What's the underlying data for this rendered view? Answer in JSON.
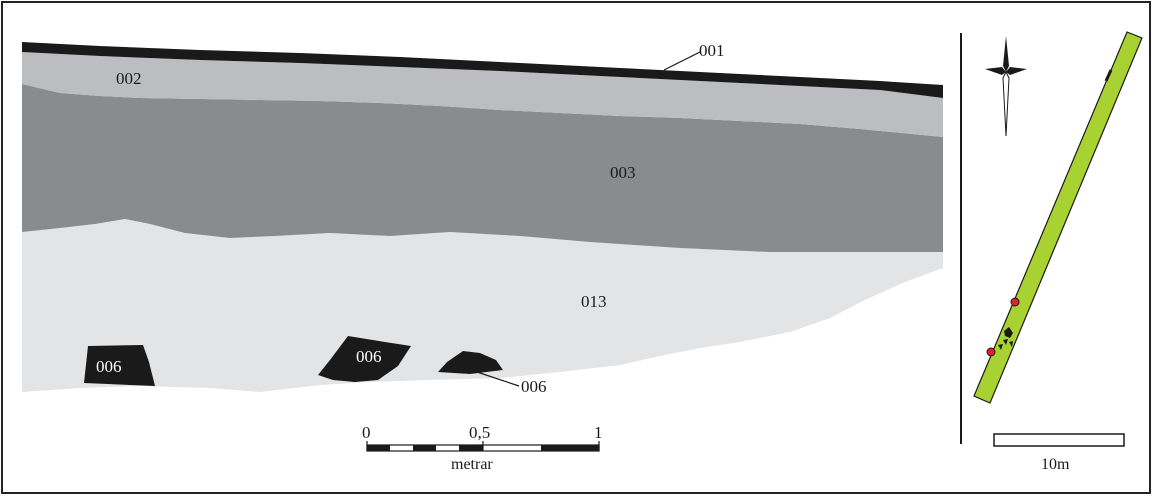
{
  "section_labels": {
    "layer_001": "001",
    "layer_002": "002",
    "layer_003": "003",
    "layer_013": "013",
    "stone_a": "006",
    "stone_b": "006",
    "stone_c": "006"
  },
  "scale_bar": {
    "tick_0": "0",
    "tick_mid": "0,5",
    "tick_1": "1",
    "unit": "metrar"
  },
  "site_plan": {
    "scale_label": "10m",
    "north_arrow": "north-arrow-icon"
  },
  "colors": {
    "layer_001": "#1a1a1a",
    "layer_002": "#bcbdc0",
    "layer_003": "#8a8b8e",
    "layer_013": "#e3e4e5",
    "stones": "#1a1a1a",
    "trench_fill": "#a8d232",
    "finds_marker": "#e0202a"
  }
}
